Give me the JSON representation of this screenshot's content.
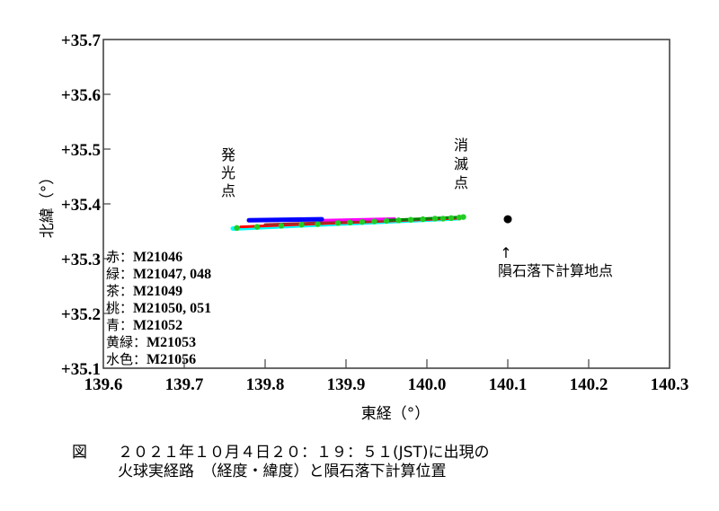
{
  "chart_data": {
    "type": "scatter",
    "title": "",
    "xlabel": "東経（°）",
    "ylabel": "北緯（°）",
    "xlim": [
      139.6,
      140.3
    ],
    "ylim": [
      35.1,
      35.7
    ],
    "x_ticks": [
      "139.6",
      "139.7",
      "139.8",
      "139.9",
      "140.0",
      "140.1",
      "140.2",
      "140.3"
    ],
    "y_ticks": [
      "+35.1",
      "+35.2",
      "+35.3",
      "+35.4",
      "+35.5",
      "+35.6",
      "+35.7"
    ],
    "grid": false,
    "series": [
      {
        "name": "赤：M21046",
        "color": "#ff0000",
        "x": [
          139.77,
          140.04
        ],
        "y": [
          35.358,
          35.374
        ]
      },
      {
        "name": "緑：M21047, 048",
        "color": "#007f00",
        "x": [
          139.95,
          140.045
        ],
        "y": [
          35.37,
          35.376
        ]
      },
      {
        "name": "茶：M21049",
        "color": "#a52a2a",
        "x": [
          139.8,
          140.0
        ],
        "y": [
          35.362,
          35.372
        ]
      },
      {
        "name": "桃：M21050, 051",
        "color": "#ff00ff",
        "x": [
          139.87,
          139.96
        ],
        "y": [
          35.37,
          35.373
        ]
      },
      {
        "name": "青：M21052",
        "color": "#0000ff",
        "x": [
          139.78,
          139.87
        ],
        "y": [
          35.37,
          35.372
        ]
      },
      {
        "name": "黄緑：M21053",
        "color": "#22cc22",
        "x": [
          139.765,
          139.79,
          139.82,
          139.845,
          139.865,
          139.89,
          139.905,
          139.92,
          139.935,
          139.95,
          139.965,
          139.98,
          139.995,
          140.01,
          140.02,
          140.03,
          140.04,
          140.045
        ],
        "y": [
          35.356,
          35.358,
          35.36,
          35.362,
          35.363,
          35.365,
          35.366,
          35.367,
          35.368,
          35.369,
          35.37,
          35.371,
          35.372,
          35.373,
          35.373,
          35.374,
          35.375,
          35.376
        ]
      },
      {
        "name": "水色：M21056",
        "color": "#00ffff",
        "x": [
          139.76,
          140.04
        ],
        "y": [
          35.355,
          35.374
        ]
      }
    ],
    "markers": [
      {
        "label": "隕石落下計算地点",
        "x": 140.1,
        "y": 35.372,
        "color": "#000000"
      }
    ],
    "annotations": [
      {
        "text": "発光点",
        "x": 139.745,
        "y": 35.46
      },
      {
        "text": "消滅点",
        "x": 140.03,
        "y": 35.47
      }
    ],
    "legend_position": "lower-left-inside"
  },
  "annotations": {
    "start_label": "発\n光\n点",
    "start_chars": [
      "発",
      "光",
      "点"
    ],
    "end_chars": [
      "消",
      "滅",
      "点"
    ],
    "meteorite_arrow": "↑",
    "meteorite_label": "隕石落下計算地点"
  },
  "legend": [
    {
      "jp": "赤",
      "code": "M21046"
    },
    {
      "jp": "緑",
      "code": "M21047, 048"
    },
    {
      "jp": "茶",
      "code": "M21049"
    },
    {
      "jp": "桃",
      "code": "M21050, 051"
    },
    {
      "jp": "青",
      "code": "M21052"
    },
    {
      "jp": "黄緑",
      "code": "M21053"
    },
    {
      "jp": "水色",
      "code": "M21056"
    }
  ],
  "axes": {
    "xlabel": "東経（°）",
    "ylabel": "北緯（°）"
  },
  "caption": {
    "line1": "図　　２０２１年１０月４日２０：１９：５１(JST)に出現の",
    "line2": "　　　火球実経路　（経度・緯度）と隕石落下計算位置"
  }
}
